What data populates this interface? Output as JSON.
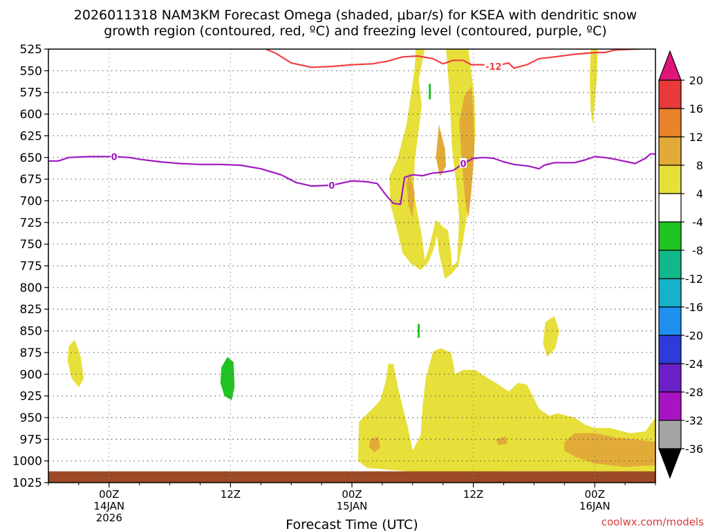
{
  "chart_data": {
    "type": "heatmap",
    "title_line1": "2026011318 NAM3KM Forecast Omega (shaded, μbar/s) for KSEA with dendritic snow",
    "title_line2": "growth region (contoured, red, ºC) and freezing level (contoured, purple, ºC)",
    "xlabel": "Forecast Time (UTC)",
    "x_unit": "hours since 2026-01-13 18Z",
    "xlim": [
      0,
      60
    ],
    "y_unit": "hPa",
    "ylim": [
      1025,
      525
    ],
    "y_ticks": [
      525,
      550,
      575,
      600,
      625,
      650,
      675,
      700,
      725,
      750,
      775,
      800,
      825,
      850,
      875,
      900,
      925,
      950,
      975,
      1000,
      1025
    ],
    "x_ticks": [
      {
        "x": 6,
        "time": "00Z",
        "date": "14JAN",
        "year": "2026"
      },
      {
        "x": 18,
        "time": "12Z",
        "date": "",
        "year": ""
      },
      {
        "x": 30,
        "time": "00Z",
        "date": "15JAN",
        "year": ""
      },
      {
        "x": 42,
        "time": "12Z",
        "date": "",
        "year": ""
      },
      {
        "x": 54,
        "time": "00Z",
        "date": "16JAN",
        "year": ""
      }
    ],
    "grid": true,
    "colorbar": {
      "label_values": [
        20,
        16,
        12,
        8,
        4,
        -4,
        -8,
        -12,
        -16,
        -20,
        -24,
        -28,
        -32,
        -36
      ],
      "bins": [
        {
          "range": "16 to 20",
          "color": "#e83a3a"
        },
        {
          "range": "12 to 16",
          "color": "#e9822a"
        },
        {
          "range": "8 to 12",
          "color": "#e2ab37"
        },
        {
          "range": "4 to 8",
          "color": "#e7df3a"
        },
        {
          "range": "-4 to 4",
          "color": "#ffffff"
        },
        {
          "range": "-8 to -4",
          "color": "#1fc420"
        },
        {
          "range": "-12 to -8",
          "color": "#11b889"
        },
        {
          "range": "-16 to -12",
          "color": "#16b2c9"
        },
        {
          "range": "-20 to -16",
          "color": "#1f8ff0"
        },
        {
          "range": "-24 to -20",
          "color": "#2d3bd8"
        },
        {
          "range": "-28 to -24",
          "color": "#6a1fc7"
        },
        {
          "range": "-32 to -28",
          "color": "#a814c4"
        },
        {
          "range": "-36 to -32",
          "color": "#a4a4a4"
        }
      ],
      "top_arrow_color": "#e0157a",
      "bottom_arrow_color": "#000000"
    },
    "contours": [
      {
        "name": "dendritic-growth -12C",
        "label": "-12",
        "color": "#f04040",
        "points": [
          [
            21.5,
            525
          ],
          [
            22.5,
            530
          ],
          [
            24,
            541
          ],
          [
            26,
            546
          ],
          [
            28,
            545
          ],
          [
            30,
            543
          ],
          [
            32,
            542
          ],
          [
            33.5,
            539
          ],
          [
            35,
            534
          ],
          [
            36.5,
            533
          ],
          [
            38,
            536
          ],
          [
            39,
            542
          ],
          [
            40,
            538
          ],
          [
            41,
            538
          ],
          [
            41.8,
            543
          ],
          [
            43,
            543
          ],
          [
            44,
            545
          ],
          [
            45.5,
            541
          ],
          [
            46,
            547
          ],
          [
            47.3,
            543
          ],
          [
            48.5,
            536
          ],
          [
            50,
            534
          ],
          [
            52,
            531
          ],
          [
            54,
            529
          ],
          [
            55,
            529
          ],
          [
            56,
            526
          ],
          [
            58,
            525
          ],
          [
            60,
            524
          ]
        ]
      },
      {
        "name": "freezing-level 0C",
        "label": "0",
        "color": "#a018c0",
        "points": [
          [
            0,
            654
          ],
          [
            1,
            654
          ],
          [
            2,
            650
          ],
          [
            4,
            649
          ],
          [
            6.5,
            649
          ],
          [
            8,
            650
          ],
          [
            9,
            652
          ],
          [
            11,
            655
          ],
          [
            13,
            657
          ],
          [
            15,
            658
          ],
          [
            17,
            658
          ],
          [
            19,
            659
          ],
          [
            21,
            663
          ],
          [
            23,
            670
          ],
          [
            24.5,
            679
          ],
          [
            26,
            683
          ],
          [
            28,
            682
          ],
          [
            30,
            677
          ],
          [
            31.5,
            678
          ],
          [
            32.5,
            680
          ],
          [
            33.4,
            694
          ],
          [
            34.1,
            703
          ],
          [
            34.8,
            704
          ],
          [
            35.2,
            673
          ],
          [
            36,
            670
          ],
          [
            37,
            671
          ],
          [
            38,
            668
          ],
          [
            39,
            667
          ],
          [
            40,
            665
          ],
          [
            41,
            657
          ],
          [
            42,
            651
          ],
          [
            43,
            650
          ],
          [
            44,
            651
          ],
          [
            45,
            655
          ],
          [
            46,
            658
          ],
          [
            47.5,
            660
          ],
          [
            48.5,
            663
          ],
          [
            49,
            659
          ],
          [
            50,
            656
          ],
          [
            51,
            656
          ],
          [
            52,
            656
          ],
          [
            53,
            653
          ],
          [
            54,
            649
          ],
          [
            55,
            650
          ],
          [
            56,
            652
          ],
          [
            58,
            657
          ],
          [
            59,
            651
          ],
          [
            59.5,
            646
          ],
          [
            60,
            646
          ]
        ]
      }
    ],
    "shaded_regions": [
      {
        "name": "omega-4-8-upper-plume-a",
        "range": "4 to 8",
        "color": "#e7df3a",
        "points": [
          [
            33.7,
            672
          ],
          [
            34.5,
            652
          ],
          [
            35.4,
            612
          ],
          [
            36.2,
            548
          ],
          [
            36.3,
            525
          ],
          [
            37.2,
            525
          ],
          [
            36.6,
            560
          ],
          [
            36.9,
            590
          ],
          [
            36.2,
            655
          ],
          [
            36.1,
            690
          ],
          [
            36.9,
            740
          ],
          [
            37.2,
            768
          ],
          [
            37.6,
            755
          ],
          [
            38.3,
            722
          ],
          [
            39,
            730
          ],
          [
            39.5,
            734
          ],
          [
            39.8,
            760
          ],
          [
            39.9,
            776
          ],
          [
            40.4,
            770
          ],
          [
            40.6,
            720
          ],
          [
            40.3,
            680
          ],
          [
            39.9,
            640
          ],
          [
            39.6,
            570
          ],
          [
            39.3,
            525
          ],
          [
            41.5,
            525
          ],
          [
            41.7,
            542
          ],
          [
            42.1,
            580
          ],
          [
            42.2,
            620
          ],
          [
            42.0,
            660
          ],
          [
            41.6,
            700
          ],
          [
            41.0,
            745
          ],
          [
            40.5,
            775
          ],
          [
            39.8,
            785
          ],
          [
            39.2,
            790
          ],
          [
            38.6,
            760
          ],
          [
            38.4,
            740
          ],
          [
            38.1,
            755
          ],
          [
            37.6,
            770
          ],
          [
            36.8,
            780
          ],
          [
            35.8,
            772
          ],
          [
            35.0,
            760
          ],
          [
            34.4,
            730
          ],
          [
            33.8,
            704
          ]
        ]
      },
      {
        "name": "omega-4-8-upper-streak",
        "range": "4 to 8",
        "color": "#e7df3a",
        "points": [
          [
            53.6,
            525
          ],
          [
            54.3,
            525
          ],
          [
            54.2,
            560
          ],
          [
            54.0,
            590
          ],
          [
            53.8,
            612
          ],
          [
            53.6,
            596
          ],
          [
            53.5,
            560
          ]
        ]
      },
      {
        "name": "omega-4-8-low-left-blob",
        "range": "4 to 8",
        "color": "#e7df3a",
        "points": [
          [
            2.0,
            868
          ],
          [
            2.6,
            860
          ],
          [
            3.2,
            880
          ],
          [
            3.5,
            905
          ],
          [
            3.0,
            915
          ],
          [
            2.3,
            905
          ],
          [
            1.9,
            885
          ]
        ]
      },
      {
        "name": "omega-4-8-low-right-blob",
        "range": "4 to 8",
        "color": "#e7df3a",
        "points": [
          [
            49.1,
            840
          ],
          [
            50.0,
            833
          ],
          [
            50.5,
            850
          ],
          [
            50.1,
            870
          ],
          [
            49.3,
            880
          ],
          [
            48.9,
            865
          ]
        ]
      },
      {
        "name": "omega-4-8-lower-mass",
        "range": "4 to 8",
        "color": "#e7df3a",
        "points": [
          [
            30.7,
            955
          ],
          [
            32.0,
            940
          ],
          [
            32.8,
            930
          ],
          [
            33.3,
            910
          ],
          [
            33.6,
            888
          ],
          [
            34.1,
            888
          ],
          [
            34.6,
            918
          ],
          [
            35.5,
            960
          ],
          [
            36.0,
            988
          ],
          [
            36.8,
            970
          ],
          [
            37.0,
            935
          ],
          [
            37.3,
            905
          ],
          [
            38.0,
            874
          ],
          [
            38.8,
            870
          ],
          [
            39.8,
            875
          ],
          [
            40.2,
            900
          ],
          [
            41.0,
            895
          ],
          [
            42.2,
            895
          ],
          [
            43.5,
            905
          ],
          [
            44.5,
            912
          ],
          [
            45.5,
            920
          ],
          [
            46.4,
            910
          ],
          [
            47.3,
            912
          ],
          [
            48.5,
            940
          ],
          [
            49.5,
            948
          ],
          [
            50.3,
            945
          ],
          [
            52.0,
            950
          ],
          [
            53.0,
            958
          ],
          [
            54.0,
            962
          ],
          [
            55.5,
            962
          ],
          [
            57.5,
            968
          ],
          [
            59.0,
            966
          ],
          [
            60,
            950
          ],
          [
            60,
            1012
          ],
          [
            57.5,
            1013
          ],
          [
            55.0,
            1012
          ],
          [
            52.5,
            1013
          ],
          [
            50.0,
            1012
          ],
          [
            47.5,
            1012
          ],
          [
            45.0,
            1012
          ],
          [
            42.5,
            1013
          ],
          [
            40.0,
            1013
          ],
          [
            37.5,
            1013
          ],
          [
            35.5,
            1012
          ],
          [
            33.5,
            1010
          ],
          [
            31.5,
            1008
          ],
          [
            30.6,
            1000
          ]
        ]
      },
      {
        "name": "omega-8-12-upper-core",
        "range": "8 to 12",
        "color": "#e2ab37",
        "points": [
          [
            41.8,
            568
          ],
          [
            42.0,
            596
          ],
          [
            42.1,
            640
          ],
          [
            41.8,
            690
          ],
          [
            41.5,
            720
          ],
          [
            41.2,
            700
          ],
          [
            40.9,
            660
          ],
          [
            40.6,
            610
          ],
          [
            41.1,
            580
          ]
        ]
      },
      {
        "name": "omega-8-12-upper-blob-a",
        "range": "8 to 12",
        "color": "#e2ab37",
        "points": [
          [
            35.7,
            668
          ],
          [
            36.2,
            690
          ],
          [
            36.0,
            720
          ],
          [
            35.6,
            705
          ],
          [
            35.4,
            680
          ]
        ]
      },
      {
        "name": "omega-8-12-upper-blob-b",
        "range": "8 to 12",
        "color": "#e2ab37",
        "points": [
          [
            38.6,
            612
          ],
          [
            39.2,
            640
          ],
          [
            39.3,
            660
          ],
          [
            38.7,
            672
          ],
          [
            38.3,
            650
          ]
        ]
      },
      {
        "name": "omega-8-12-lower-blob-a",
        "range": "8 to 12",
        "color": "#e2ab37",
        "points": [
          [
            31.8,
            975
          ],
          [
            32.6,
            972
          ],
          [
            32.8,
            985
          ],
          [
            32.2,
            990
          ],
          [
            31.7,
            984
          ]
        ]
      },
      {
        "name": "omega-8-12-lower-blob-b",
        "range": "8 to 12",
        "color": "#e2ab37",
        "points": [
          [
            44.2,
            975
          ],
          [
            45.2,
            972
          ],
          [
            45.4,
            980
          ],
          [
            44.5,
            982
          ]
        ]
      },
      {
        "name": "omega-8-12-lower-right-band",
        "range": "8 to 12",
        "color": "#e2ab37",
        "points": [
          [
            51.0,
            978
          ],
          [
            52.0,
            968
          ],
          [
            54.0,
            968
          ],
          [
            56.0,
            973
          ],
          [
            58.0,
            975
          ],
          [
            60,
            978
          ],
          [
            60,
            1005
          ],
          [
            57.0,
            1007
          ],
          [
            54.0,
            1003
          ],
          [
            52.0,
            995
          ],
          [
            51.0,
            988
          ]
        ]
      },
      {
        "name": "omega-neg4-neg8-left",
        "range": "-8 to -4",
        "color": "#1fc420",
        "points": [
          [
            17.1,
            892
          ],
          [
            17.7,
            880
          ],
          [
            18.3,
            886
          ],
          [
            18.4,
            915
          ],
          [
            18.1,
            930
          ],
          [
            17.4,
            925
          ],
          [
            17.0,
            910
          ]
        ]
      },
      {
        "name": "omega-neg4-neg8-streak-upper",
        "range": "-8 to -4",
        "color": "#1fc420",
        "points": [
          [
            37.6,
            565
          ],
          [
            37.8,
            565
          ],
          [
            37.8,
            583
          ],
          [
            37.6,
            583
          ]
        ]
      },
      {
        "name": "omega-neg4-neg8-streak-lower",
        "range": "-8 to -4",
        "color": "#1fc420",
        "points": [
          [
            36.5,
            842
          ],
          [
            36.7,
            842
          ],
          [
            36.7,
            858
          ],
          [
            36.5,
            858
          ]
        ]
      }
    ],
    "terrain": {
      "name": "ground",
      "color": "#9b4a25",
      "top_hPa": 1012
    }
  },
  "credit": "coolwx.com/models"
}
